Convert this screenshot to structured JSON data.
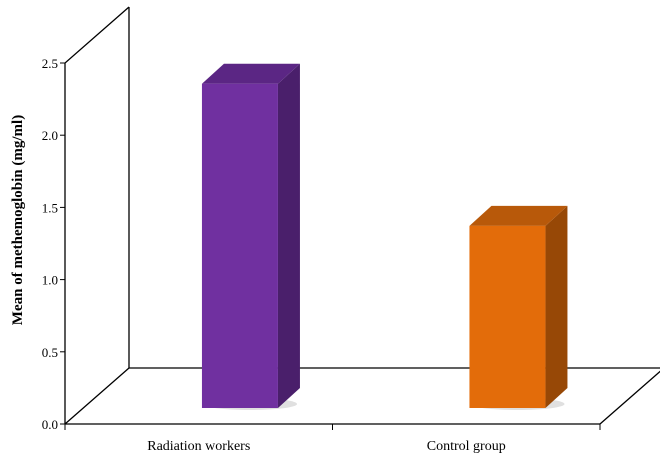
{
  "chart_data": {
    "type": "bar",
    "categories": [
      "Radiation workers",
      "Control group"
    ],
    "values": [
      2.35,
      1.32
    ],
    "ylabel": "Mean of methemoglobin (mg/ml)",
    "xlabel": "",
    "ylim": [
      0,
      2.5
    ],
    "yticks": [
      "0.0",
      "0.5",
      "1.0",
      "1.5",
      "2.0",
      "2.5"
    ],
    "grid": false,
    "legend": "none",
    "colors": {
      "bar_fronts": [
        "#7030a0",
        "#e36c0a"
      ],
      "bar_sides": [
        "#4a1f6b",
        "#974806"
      ],
      "bar_tops": [
        "#5b2684",
        "#b8590a"
      ]
    }
  }
}
